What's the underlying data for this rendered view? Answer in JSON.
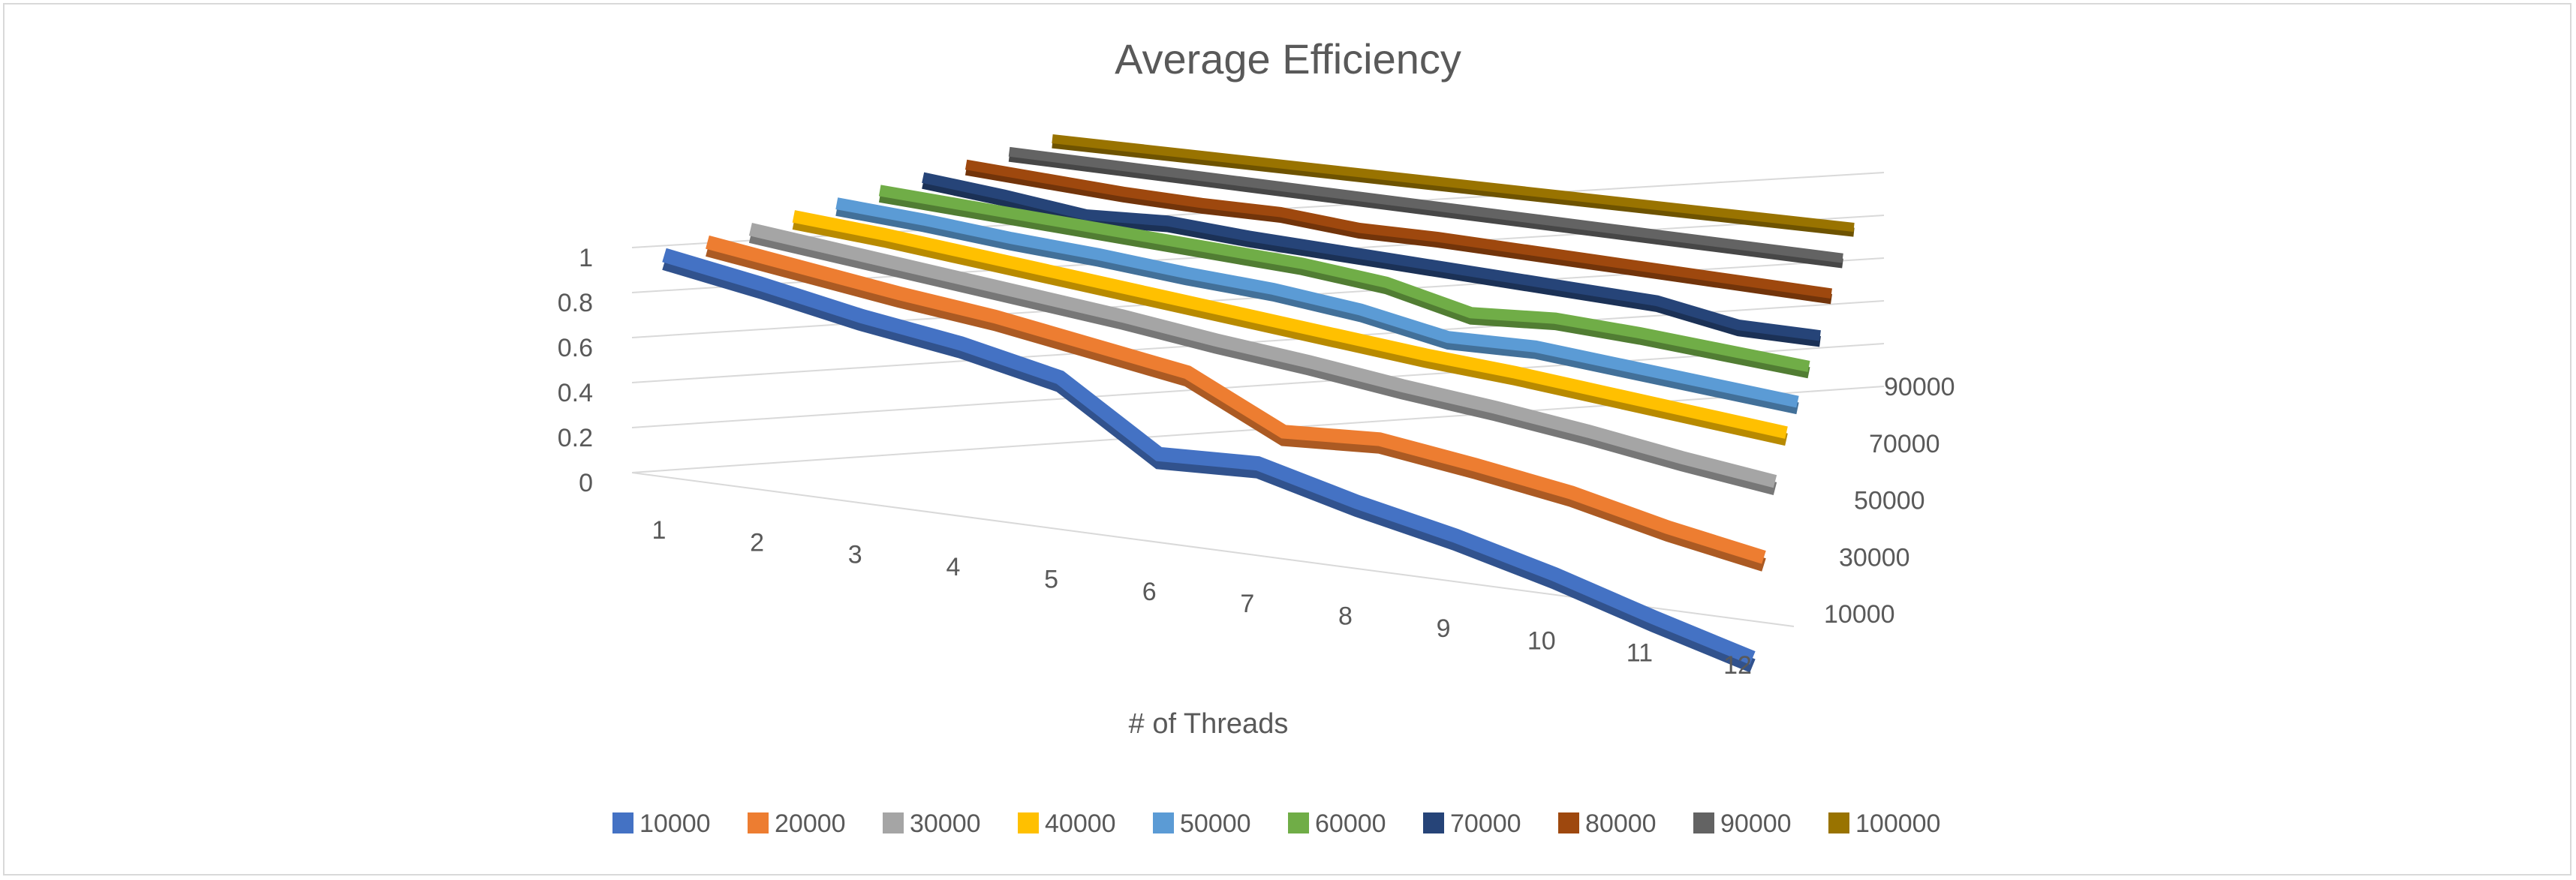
{
  "chart_data": {
    "type": "line",
    "subtype": "3d-line",
    "title": "Average Efficiency",
    "xlabel": "# of Threads",
    "ylabel": "",
    "categories": [
      "1",
      "2",
      "3",
      "4",
      "5",
      "6",
      "7",
      "8",
      "9",
      "10",
      "11",
      "12"
    ],
    "depth_tick_labels": [
      "10000",
      "30000",
      "50000",
      "70000",
      "90000"
    ],
    "y_ticks": [
      "0",
      "0.2",
      "0.4",
      "0.6",
      "0.8",
      "1"
    ],
    "ylim": [
      0,
      1
    ],
    "grid": true,
    "legend_position": "bottom",
    "series": [
      {
        "name": "10000",
        "color": "#4472C4",
        "values": [
          1.0,
          0.96,
          0.91,
          0.88,
          0.82,
          0.57,
          0.62,
          0.54,
          0.48,
          0.4,
          0.3,
          0.21
        ]
      },
      {
        "name": "20000",
        "color": "#ED7D31",
        "values": [
          1.0,
          0.97,
          0.94,
          0.92,
          0.88,
          0.84,
          0.66,
          0.71,
          0.68,
          0.64,
          0.57,
          0.52
        ]
      },
      {
        "name": "30000",
        "color": "#A5A5A5",
        "values": [
          1.0,
          0.98,
          0.96,
          0.94,
          0.92,
          0.89,
          0.87,
          0.84,
          0.82,
          0.79,
          0.75,
          0.72
        ]
      },
      {
        "name": "40000",
        "color": "#FFC000",
        "values": [
          1.0,
          0.99,
          0.97,
          0.95,
          0.93,
          0.91,
          0.89,
          0.87,
          0.86,
          0.84,
          0.82,
          0.8
        ]
      },
      {
        "name": "50000",
        "color": "#5B9BD5",
        "values": [
          1.0,
          0.99,
          0.97,
          0.96,
          0.94,
          0.93,
          0.9,
          0.84,
          0.86,
          0.84,
          0.82,
          0.8
        ]
      },
      {
        "name": "60000",
        "color": "#70AD47",
        "values": [
          1.0,
          0.99,
          0.98,
          0.97,
          0.96,
          0.95,
          0.92,
          0.84,
          0.87,
          0.86,
          0.84,
          0.82
        ]
      },
      {
        "name": "70000",
        "color": "#264478",
        "values": [
          1.0,
          0.97,
          0.93,
          0.95,
          0.93,
          0.92,
          0.91,
          0.9,
          0.89,
          0.88,
          0.82,
          0.82
        ]
      },
      {
        "name": "80000",
        "color": "#9E480E",
        "values": [
          1.0,
          0.98,
          0.96,
          0.95,
          0.95,
          0.92,
          0.92,
          0.91,
          0.9,
          0.89,
          0.88,
          0.87
        ]
      },
      {
        "name": "90000",
        "color": "#636363",
        "values": [
          1.0,
          0.99,
          0.98,
          0.97,
          0.96,
          0.95,
          0.94,
          0.93,
          0.92,
          0.91,
          0.9,
          0.89
        ]
      },
      {
        "name": "100000",
        "color": "#997300",
        "values": [
          1.0,
          0.99,
          0.98,
          0.97,
          0.96,
          0.95,
          0.94,
          0.93,
          0.92,
          0.91,
          0.9,
          0.89
        ]
      }
    ]
  }
}
